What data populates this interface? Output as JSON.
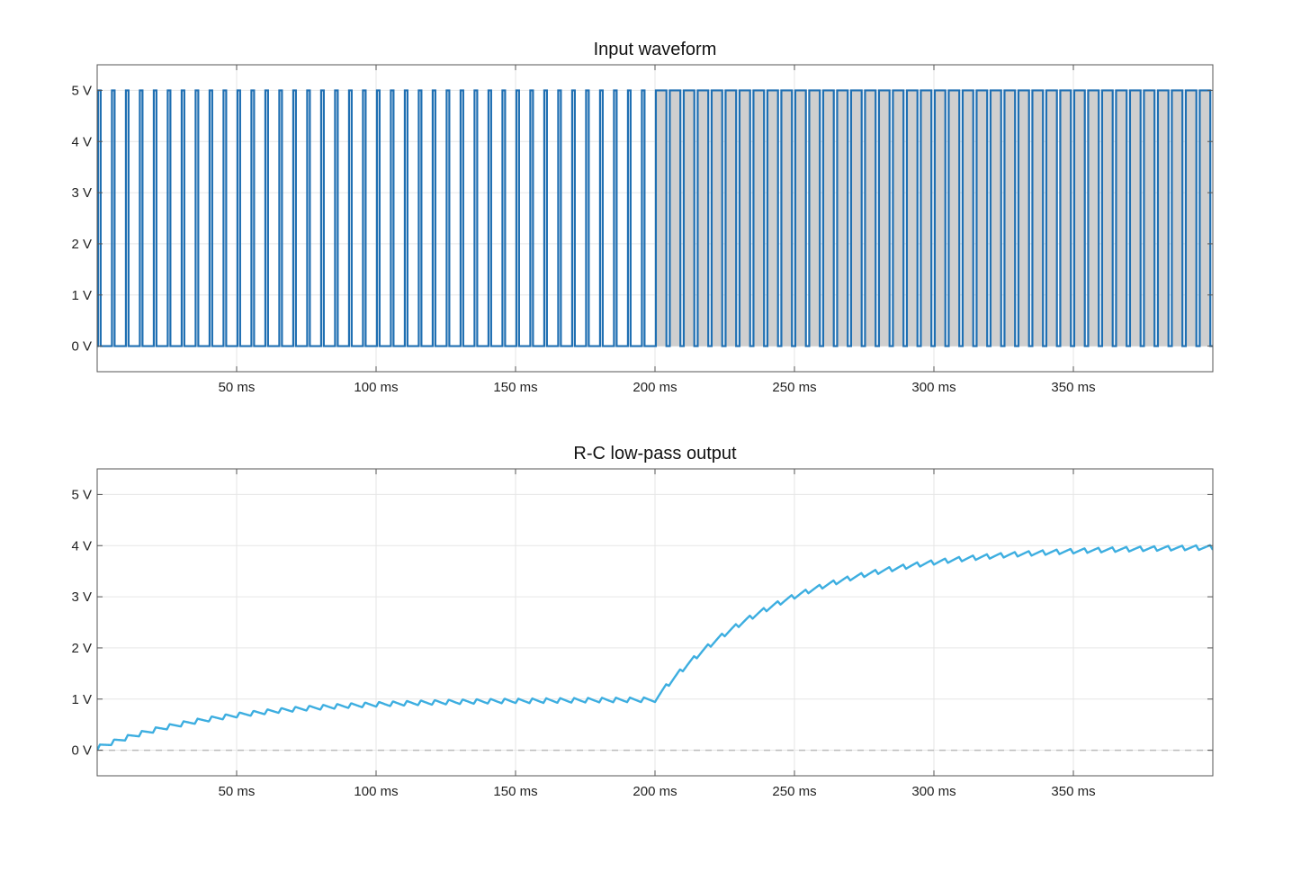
{
  "chart_data": [
    {
      "type": "line",
      "title": "Input waveform",
      "xlabel": "",
      "ylabel": "",
      "xlim": [
        0,
        400
      ],
      "ylim": [
        -0.5,
        5.5
      ],
      "x_ticks": [
        50,
        100,
        150,
        200,
        250,
        300,
        350
      ],
      "x_tick_labels": [
        "50 ms",
        "100 ms",
        "150 ms",
        "200 ms",
        "250 ms",
        "300 ms",
        "350 ms"
      ],
      "y_ticks": [
        0,
        1,
        2,
        3,
        4,
        5
      ],
      "y_tick_labels": [
        "0 V",
        "1 V",
        "2 V",
        "3 V",
        "4 V",
        "5 V"
      ],
      "grid": true,
      "series": [
        {
          "kind": "pwm",
          "color": "#1f6fb2",
          "fill_color": "#cfcfcf",
          "period_ms": 5,
          "low_v": 0,
          "high_v": 5,
          "segments": [
            {
              "start_ms": 0,
              "end_ms": 200,
              "duty": 0.2
            },
            {
              "start_ms": 200,
              "end_ms": 400,
              "duty": 0.8
            }
          ]
        }
      ]
    },
    {
      "type": "line",
      "title": "R-C low-pass output",
      "xlabel": "",
      "ylabel": "",
      "xlim": [
        0,
        400
      ],
      "ylim": [
        -0.5,
        5.5
      ],
      "x_ticks": [
        50,
        100,
        150,
        200,
        250,
        300,
        350
      ],
      "x_tick_labels": [
        "50 ms",
        "100 ms",
        "150 ms",
        "200 ms",
        "250 ms",
        "300 ms",
        "350 ms"
      ],
      "y_ticks": [
        0,
        1,
        2,
        3,
        4,
        5
      ],
      "y_tick_labels": [
        "0 V",
        "1 V",
        "2 V",
        "3 V",
        "4 V",
        "5 V"
      ],
      "grid": true,
      "reference_line": {
        "y": 0,
        "style": "dashed",
        "color": "#bbbbbb"
      },
      "series": [
        {
          "kind": "rc_response",
          "color": "#3daee0",
          "tau_ms": 45,
          "period_ms": 5,
          "low_v": 0,
          "high_v": 5,
          "start_v": 0,
          "segments": [
            {
              "start_ms": 0,
              "end_ms": 200,
              "duty": 0.2
            },
            {
              "start_ms": 200,
              "end_ms": 400,
              "duty": 0.8
            }
          ]
        }
      ]
    }
  ]
}
